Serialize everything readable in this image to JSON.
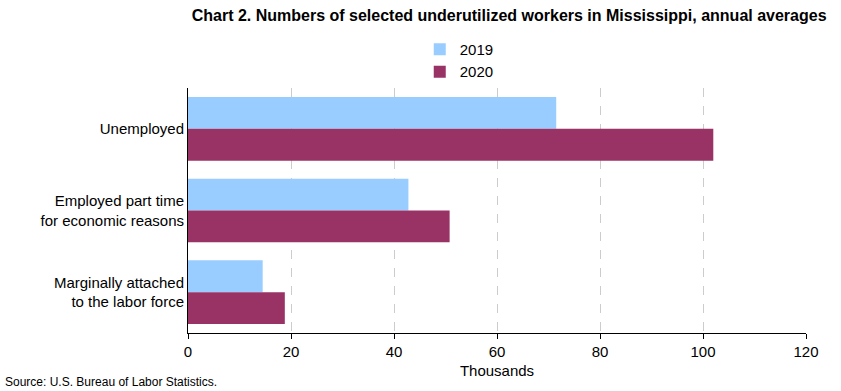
{
  "chart_data": {
    "type": "bar",
    "title": "Chart 2. Numbers of selected underutilized workers in Mississippi, annual averages",
    "orientation": "horizontal",
    "categories": [
      "Unemployed",
      "Employed part time\nfor economic reasons",
      "Marginally attached\nto the labor force"
    ],
    "series": [
      {
        "name": "2019",
        "color": "#99ccff",
        "values": [
          71.5,
          42.8,
          14.5
        ]
      },
      {
        "name": "2020",
        "color": "#993366",
        "values": [
          102.0,
          50.8,
          18.8
        ]
      }
    ],
    "x_label": "Thousands",
    "xlim": [
      0,
      120
    ],
    "xticks": [
      0,
      20,
      40,
      60,
      80,
      100,
      120
    ],
    "grid": true,
    "legend": "top",
    "source": "Source: U.S. Bureau of Labor Statistics."
  }
}
